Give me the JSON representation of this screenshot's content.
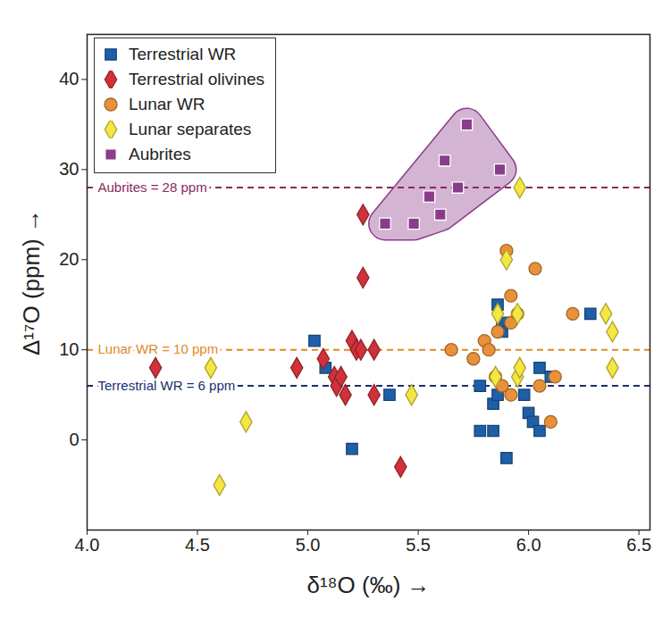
{
  "chart_data": {
    "type": "scatter",
    "x_label": "δ¹⁸O (‰)",
    "y_label": "Δ¹⁷O (ppm)",
    "xlim": [
      4.0,
      6.55
    ],
    "xticks": [
      {
        "value": 4.0,
        "label": "4.0"
      },
      {
        "value": 4.5,
        "label": "4.5"
      },
      {
        "value": 5.0,
        "label": "5.0"
      },
      {
        "value": 5.5,
        "label": "5.5"
      },
      {
        "value": 6.0,
        "label": "6.0"
      },
      {
        "value": 6.5,
        "label": "6.5"
      }
    ],
    "ylim": [
      -10,
      45
    ],
    "yticks": [
      0,
      10,
      20,
      30,
      40
    ],
    "grid": false,
    "legend": "top-left",
    "series": [
      {
        "name": "Terrestrial WR",
        "color": "#1f5fa8",
        "marker": "square",
        "x": [
          5.03,
          5.08,
          5.2,
          5.37,
          5.78,
          5.78,
          5.84,
          5.84,
          5.86,
          5.86,
          5.88,
          5.88,
          5.9,
          5.98,
          6.0,
          6.02,
          6.05,
          6.05,
          6.1,
          6.28
        ],
        "values": [
          11,
          8,
          -1,
          5,
          6,
          1,
          1,
          4,
          5,
          15,
          13,
          12,
          -2,
          5,
          3,
          2,
          8,
          1,
          7,
          14
        ]
      },
      {
        "name": "Terrestrial olivines",
        "color": "#d0323a",
        "marker": "diamond",
        "x": [
          4.31,
          4.95,
          5.07,
          5.2,
          5.22,
          5.25,
          5.25,
          5.24,
          5.12,
          5.13,
          5.15,
          5.17,
          5.3,
          5.3,
          5.42
        ],
        "values": [
          8,
          8,
          9,
          11,
          10,
          25,
          18,
          10,
          7,
          6,
          7,
          5,
          10,
          5,
          -3
        ]
      },
      {
        "name": "Lunar WR",
        "color": "#e8913a",
        "marker": "circle",
        "x": [
          5.65,
          5.75,
          5.8,
          5.82,
          5.85,
          5.88,
          5.9,
          5.92,
          5.92,
          5.95,
          6.03,
          6.05,
          6.12,
          6.1,
          6.2,
          5.92,
          5.86
        ],
        "values": [
          10,
          9,
          11,
          10,
          7,
          6,
          21,
          16,
          13,
          14,
          19,
          6,
          7,
          2,
          14,
          5,
          12
        ]
      },
      {
        "name": "Lunar separates",
        "color": "#f5e642",
        "marker": "diamond",
        "x": [
          4.6,
          4.56,
          4.72,
          5.47,
          5.86,
          5.9,
          5.95,
          5.96,
          5.95,
          5.96,
          5.85,
          6.35,
          6.38,
          6.38
        ],
        "values": [
          -5,
          8,
          2,
          5,
          14,
          20,
          14,
          28,
          7,
          8,
          7,
          14,
          12,
          8
        ]
      },
      {
        "name": "Aubrites",
        "color": "#8a3c8c",
        "marker": "square",
        "x": [
          5.35,
          5.48,
          5.55,
          5.6,
          5.62,
          5.68,
          5.72,
          5.87
        ],
        "values": [
          24,
          24,
          27,
          25,
          31,
          28,
          35,
          30
        ]
      }
    ],
    "annotations": [
      {
        "y": 28,
        "text": "Aubrites = 28 ppm",
        "color": "#8a2a5c"
      },
      {
        "y": 10,
        "text": "Lunar WR = 10 ppm",
        "color": "#e08a1e"
      },
      {
        "y": 6,
        "text": "Terrestrial WR = 6 ppm",
        "color": "#1a2f6e"
      }
    ]
  }
}
